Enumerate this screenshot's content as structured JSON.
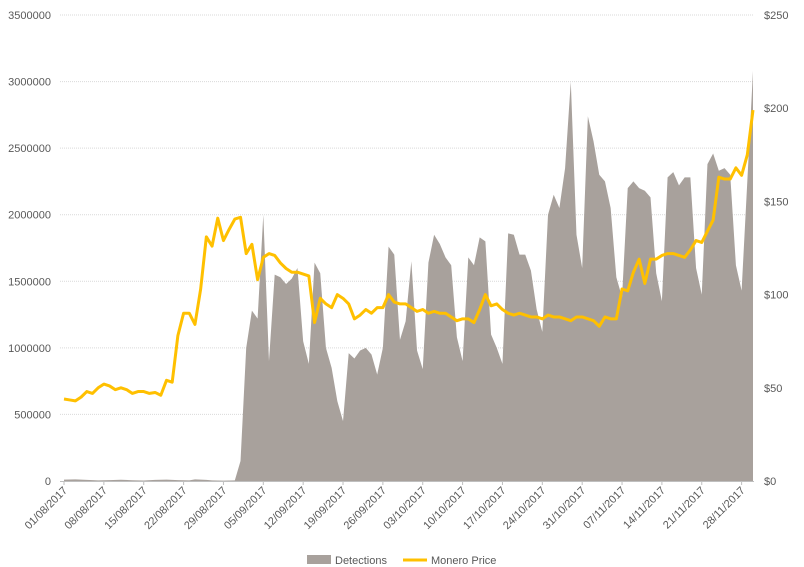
{
  "chart_data": {
    "type": "area",
    "title": "",
    "xlabel": "",
    "ylabel": "",
    "x_tick_labels": [
      "01/08/2017",
      "08/08/2017",
      "15/08/2017",
      "22/08/2017",
      "29/08/2017",
      "05/09/2017",
      "12/09/2017",
      "19/09/2017",
      "26/09/2017",
      "03/10/2017",
      "10/10/2017",
      "17/10/2017",
      "24/10/2017",
      "31/10/2017",
      "07/11/2017",
      "14/11/2017",
      "21/11/2017",
      "28/11/2017"
    ],
    "y_left": {
      "min": 0,
      "max": 3500000,
      "ticks": [
        "0",
        "500000",
        "1000000",
        "1500000",
        "2000000",
        "2500000",
        "3000000",
        "3500000"
      ]
    },
    "y_right": {
      "min": 0,
      "max": 250,
      "ticks": [
        "$0",
        "$50",
        "$100",
        "$150",
        "$200",
        "$250"
      ]
    },
    "grid": true,
    "legend_position": "bottom",
    "series": [
      {
        "name": "Detections",
        "kind": "area",
        "axis": "left",
        "color": "#a8a19c",
        "points": [
          [
            0,
            10000
          ],
          [
            2,
            12000
          ],
          [
            4,
            8000
          ],
          [
            6,
            5000
          ],
          [
            8,
            7000
          ],
          [
            10,
            9000
          ],
          [
            12,
            6000
          ],
          [
            14,
            4000
          ],
          [
            16,
            8000
          ],
          [
            18,
            10000
          ],
          [
            20,
            7000
          ],
          [
            22,
            5000
          ],
          [
            23,
            12000
          ],
          [
            25,
            8000
          ],
          [
            26,
            5000
          ],
          [
            28,
            3000
          ],
          [
            30,
            5000
          ],
          [
            31,
            150000
          ],
          [
            32,
            1000000
          ],
          [
            33,
            1280000
          ],
          [
            34,
            1220000
          ],
          [
            35,
            2000000
          ],
          [
            36,
            900000
          ],
          [
            37,
            1550000
          ],
          [
            38,
            1530000
          ],
          [
            39,
            1480000
          ],
          [
            40,
            1520000
          ],
          [
            41,
            1600000
          ],
          [
            42,
            1050000
          ],
          [
            43,
            880000
          ],
          [
            44,
            1640000
          ],
          [
            45,
            1560000
          ],
          [
            46,
            1000000
          ],
          [
            47,
            850000
          ],
          [
            48,
            600000
          ],
          [
            49,
            450000
          ],
          [
            50,
            960000
          ],
          [
            51,
            920000
          ],
          [
            52,
            980000
          ],
          [
            53,
            1000000
          ],
          [
            54,
            950000
          ],
          [
            55,
            800000
          ],
          [
            56,
            1000000
          ],
          [
            57,
            1760000
          ],
          [
            58,
            1700000
          ],
          [
            59,
            1060000
          ],
          [
            60,
            1200000
          ],
          [
            61,
            1650000
          ],
          [
            62,
            980000
          ],
          [
            63,
            840000
          ],
          [
            64,
            1640000
          ],
          [
            65,
            1850000
          ],
          [
            66,
            1780000
          ],
          [
            67,
            1680000
          ],
          [
            68,
            1620000
          ],
          [
            69,
            1080000
          ],
          [
            70,
            900000
          ],
          [
            71,
            1680000
          ],
          [
            72,
            1620000
          ],
          [
            73,
            1830000
          ],
          [
            74,
            1800000
          ],
          [
            75,
            1100000
          ],
          [
            76,
            1000000
          ],
          [
            77,
            880000
          ],
          [
            78,
            1860000
          ],
          [
            79,
            1850000
          ],
          [
            80,
            1700000
          ],
          [
            81,
            1700000
          ],
          [
            82,
            1580000
          ],
          [
            83,
            1290000
          ],
          [
            84,
            1120000
          ],
          [
            85,
            2000000
          ],
          [
            86,
            2150000
          ],
          [
            87,
            2050000
          ],
          [
            88,
            2350000
          ],
          [
            89,
            3000000
          ],
          [
            90,
            1850000
          ],
          [
            91,
            1600000
          ],
          [
            92,
            2740000
          ],
          [
            93,
            2550000
          ],
          [
            94,
            2300000
          ],
          [
            95,
            2250000
          ],
          [
            96,
            2050000
          ],
          [
            97,
            1530000
          ],
          [
            98,
            1380000
          ],
          [
            99,
            2200000
          ],
          [
            100,
            2250000
          ],
          [
            101,
            2200000
          ],
          [
            102,
            2180000
          ],
          [
            103,
            2130000
          ],
          [
            104,
            1560000
          ],
          [
            105,
            1350000
          ],
          [
            106,
            2280000
          ],
          [
            107,
            2320000
          ],
          [
            108,
            2220000
          ],
          [
            109,
            2280000
          ],
          [
            110,
            2280000
          ],
          [
            111,
            1600000
          ],
          [
            112,
            1400000
          ],
          [
            113,
            2380000
          ],
          [
            114,
            2460000
          ],
          [
            115,
            2330000
          ],
          [
            116,
            2350000
          ],
          [
            117,
            2300000
          ],
          [
            118,
            1620000
          ],
          [
            119,
            1430000
          ],
          [
            120,
            2250000
          ],
          [
            121,
            3080000
          ]
        ]
      },
      {
        "name": "Monero Price",
        "kind": "line",
        "axis": "right",
        "color": "#ffc000",
        "points": [
          [
            0,
            44
          ],
          [
            1,
            43.5
          ],
          [
            2,
            43
          ],
          [
            3,
            45
          ],
          [
            4,
            48
          ],
          [
            5,
            47
          ],
          [
            6,
            50
          ],
          [
            7,
            52
          ],
          [
            8,
            51
          ],
          [
            9,
            49
          ],
          [
            10,
            50
          ],
          [
            11,
            49
          ],
          [
            12,
            47
          ],
          [
            13,
            48
          ],
          [
            14,
            48
          ],
          [
            15,
            47
          ],
          [
            16,
            47.5
          ],
          [
            17,
            46
          ],
          [
            18,
            54
          ],
          [
            19,
            53
          ],
          [
            20,
            78
          ],
          [
            21,
            90
          ],
          [
            22,
            90
          ],
          [
            23,
            84
          ],
          [
            24,
            103
          ],
          [
            25,
            131
          ],
          [
            26,
            126
          ],
          [
            27,
            141
          ],
          [
            28,
            129
          ],
          [
            29,
            135
          ],
          [
            30,
            140.5
          ],
          [
            31,
            141.5
          ],
          [
            32,
            122
          ],
          [
            33,
            127
          ],
          [
            34,
            108
          ],
          [
            35,
            120
          ],
          [
            36,
            122
          ],
          [
            37,
            121
          ],
          [
            38,
            117
          ],
          [
            39,
            114
          ],
          [
            40,
            112
          ],
          [
            41,
            112
          ],
          [
            42,
            111
          ],
          [
            43,
            110
          ],
          [
            44,
            85
          ],
          [
            45,
            98
          ],
          [
            46,
            95
          ],
          [
            47,
            93
          ],
          [
            48,
            100
          ],
          [
            49,
            98
          ],
          [
            50,
            95
          ],
          [
            51,
            87
          ],
          [
            52,
            89
          ],
          [
            53,
            92
          ],
          [
            54,
            90
          ],
          [
            55,
            93
          ],
          [
            56,
            93
          ],
          [
            57,
            100
          ],
          [
            58,
            96
          ],
          [
            59,
            95
          ],
          [
            60,
            95
          ],
          [
            61,
            93
          ],
          [
            62,
            91
          ],
          [
            63,
            92
          ],
          [
            64,
            90
          ],
          [
            65,
            91
          ],
          [
            66,
            90
          ],
          [
            67,
            90
          ],
          [
            68,
            88
          ],
          [
            69,
            86
          ],
          [
            70,
            87
          ],
          [
            71,
            87
          ],
          [
            72,
            85
          ],
          [
            73,
            92
          ],
          [
            74,
            100
          ],
          [
            75,
            94
          ],
          [
            76,
            95
          ],
          [
            77,
            92
          ],
          [
            78,
            90
          ],
          [
            79,
            89
          ],
          [
            80,
            90
          ],
          [
            81,
            89
          ],
          [
            82,
            88
          ],
          [
            83,
            88
          ],
          [
            84,
            87
          ],
          [
            85,
            89
          ],
          [
            86,
            88
          ],
          [
            87,
            88
          ],
          [
            88,
            87
          ],
          [
            89,
            86
          ],
          [
            90,
            88
          ],
          [
            91,
            88
          ],
          [
            92,
            87
          ],
          [
            93,
            86
          ],
          [
            94,
            83
          ],
          [
            95,
            88
          ],
          [
            96,
            87
          ],
          [
            97,
            87
          ],
          [
            98,
            103
          ],
          [
            99,
            102
          ],
          [
            100,
            112
          ],
          [
            101,
            119
          ],
          [
            102,
            106
          ],
          [
            103,
            119
          ],
          [
            104,
            119
          ],
          [
            105,
            121
          ],
          [
            106,
            122
          ],
          [
            107,
            122
          ],
          [
            108,
            121
          ],
          [
            109,
            120
          ],
          [
            110,
            124
          ],
          [
            111,
            129
          ],
          [
            112,
            128
          ],
          [
            113,
            134
          ],
          [
            114,
            140
          ],
          [
            115,
            163
          ],
          [
            116,
            162
          ],
          [
            117,
            162
          ],
          [
            118,
            168
          ],
          [
            119,
            164
          ],
          [
            120,
            175
          ],
          [
            121,
            199
          ]
        ]
      }
    ]
  }
}
